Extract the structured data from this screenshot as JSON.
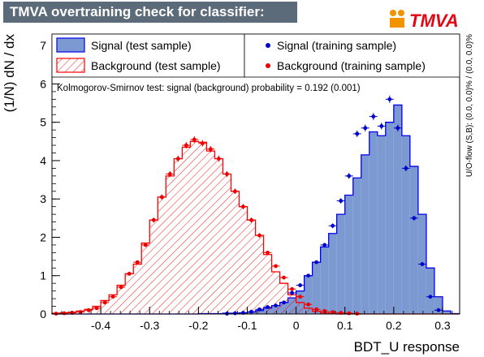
{
  "header": {
    "title": "TMVA overtraining check for classifier: BDT_U",
    "logo_text": "TMVA"
  },
  "chart_data": {
    "type": "histogram",
    "xlabel": "BDT_U response",
    "ylabel": "(1/N) dN / dx",
    "xlim": [
      -0.5,
      0.335
    ],
    "ylim": [
      0,
      7.3
    ],
    "x_ticks": [
      -0.4,
      -0.3,
      -0.2,
      -0.1,
      0,
      0.1,
      0.2,
      0.3
    ],
    "y_ticks": [
      0,
      1,
      2,
      3,
      4,
      5,
      6,
      7
    ],
    "grid": false,
    "legend_position": "top",
    "annotation": "Kolmogorov-Smirnov test: signal (background) probability = 0.192 (0.001)",
    "side_label": "U/O-flow (S,B): (0.0, 0.0)% / (0.0, 0.0)%",
    "colors": {
      "signal_fill": "#7d99d1",
      "signal_line": "#0000ee",
      "background_line": "#ff0000",
      "signal_points": "#0000cc",
      "background_points": "#ee0000"
    },
    "bin_edges": [
      -0.5,
      -0.4833,
      -0.4667,
      -0.45,
      -0.4333,
      -0.4167,
      -0.4,
      -0.3833,
      -0.3667,
      -0.35,
      -0.3333,
      -0.3167,
      -0.3,
      -0.2833,
      -0.2667,
      -0.25,
      -0.2333,
      -0.2167,
      -0.2,
      -0.1833,
      -0.1667,
      -0.15,
      -0.1333,
      -0.1167,
      -0.1,
      -0.0833,
      -0.0667,
      -0.05,
      -0.0333,
      -0.0167,
      0,
      0.0167,
      0.0333,
      0.05,
      0.0667,
      0.0833,
      0.1,
      0.1167,
      0.1333,
      0.15,
      0.1667,
      0.1833,
      0.2,
      0.2167,
      0.2333,
      0.25,
      0.2667,
      0.2833,
      0.3,
      0.3167,
      0.3333
    ],
    "series": [
      {
        "name": "Signal (test sample)",
        "style": "filled",
        "values": [
          0,
          0,
          0,
          0,
          0,
          0,
          0,
          0,
          0,
          0,
          0,
          0,
          0,
          0,
          0,
          0,
          0,
          0,
          0.01,
          0.01,
          0.01,
          0.02,
          0.02,
          0.03,
          0.05,
          0.09,
          0.15,
          0.22,
          0.3,
          0.42,
          0.6,
          1.0,
          1.35,
          1.75,
          2.1,
          2.6,
          3.1,
          3.55,
          4.15,
          4.75,
          4.65,
          5.0,
          5.45,
          4.65,
          3.85,
          2.6,
          1.2,
          0.45,
          0.08,
          0.01
        ]
      },
      {
        "name": "Background (test sample)",
        "style": "hatched",
        "values": [
          0.02,
          0.03,
          0.05,
          0.08,
          0.12,
          0.2,
          0.35,
          0.5,
          0.75,
          1.05,
          1.3,
          1.85,
          2.45,
          3.05,
          3.6,
          4.05,
          4.35,
          4.5,
          4.48,
          4.25,
          4.05,
          3.65,
          3.2,
          2.8,
          2.45,
          2.05,
          1.55,
          1.1,
          0.8,
          0.5,
          0.3,
          0.15,
          0.07,
          0.03,
          0.01,
          0,
          0,
          0,
          0,
          0,
          0,
          0,
          0,
          0,
          0,
          0,
          0,
          0,
          0,
          0
        ]
      },
      {
        "name": "Signal (training sample)",
        "style": "points",
        "values": [
          0,
          0,
          0,
          0,
          0,
          0,
          0,
          0,
          0,
          0,
          0,
          0,
          0,
          0,
          0,
          0,
          0,
          0,
          0,
          0,
          0,
          0.01,
          0.02,
          0.03,
          0.06,
          0.12,
          0.18,
          0.22,
          0.3,
          0.55,
          0.75,
          1.0,
          1.35,
          1.8,
          2.3,
          2.95,
          3.6,
          4.7,
          4.85,
          5.15,
          4.9,
          5.6,
          4.85,
          3.8,
          2.5,
          1.3,
          0.45,
          0.1,
          0,
          0
        ]
      },
      {
        "name": "Background (training sample)",
        "style": "points",
        "values": [
          0.01,
          0.02,
          0.03,
          0.05,
          0.1,
          0.15,
          0.3,
          0.45,
          0.7,
          1.05,
          1.35,
          1.8,
          2.45,
          3.05,
          3.65,
          4.05,
          4.4,
          4.55,
          4.45,
          4.3,
          4.05,
          3.65,
          3.2,
          2.8,
          2.45,
          2.05,
          1.6,
          1.25,
          0.95,
          0.65,
          0.45,
          0.25,
          0.12,
          0.08,
          0.05,
          0.03,
          0.02,
          0.01,
          0,
          0,
          0,
          0,
          0,
          0,
          0,
          0,
          0,
          0,
          0,
          0
        ]
      }
    ]
  }
}
